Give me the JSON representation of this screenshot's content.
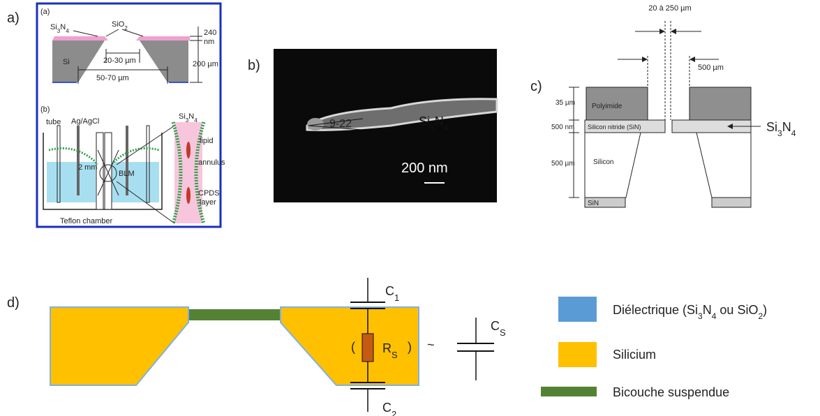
{
  "panel_labels": {
    "a": "a)",
    "b": "b)",
    "c": "c)",
    "d": "d)"
  },
  "a": {
    "top": {
      "label": "(a)",
      "si3n4": [
        "Si",
        "3",
        "N",
        "4"
      ],
      "sio2": [
        "SiO",
        "2"
      ],
      "thickness_value": "240",
      "thickness_unit": "nm",
      "depth": "200 µm",
      "si": "Si",
      "inner_width": "20-30 µm",
      "outer_width": "50-70 µm"
    },
    "bottom": {
      "label": "(b)",
      "tube": "tube",
      "electrode": "Ag/AgCl",
      "si3n4": [
        "Si",
        "3",
        "N",
        "4"
      ],
      "lipid": "lipid",
      "annulus": "annulus",
      "gap": "2 mm",
      "blm": "BLM",
      "cpds_1": "CPDS",
      "cpds_2": "layer",
      "chamber": "Teflon chamber"
    }
  },
  "b": {
    "angle": "9-22",
    "material": [
      "Si",
      "3",
      "N",
      "4"
    ],
    "scale": "200 nm"
  },
  "c": {
    "aperture": "20 à 250 µm",
    "hole": "500 µm",
    "polyimide_thickness": "35 µm",
    "nitride_thickness": "500 nm",
    "silicon_thickness": "500 µm",
    "polyimide": "Polyimide",
    "nitride": "Silicon nitride (SiN)",
    "silicon": "Silicon",
    "sin": "SiN",
    "callout": [
      "Si",
      "3",
      "N",
      "4"
    ]
  },
  "d": {
    "c1": [
      "C",
      "1"
    ],
    "c2": [
      "C",
      "2"
    ],
    "rs": [
      "R",
      "S"
    ],
    "cs": [
      "C",
      "S"
    ],
    "paren_open": "(",
    "paren_close": ")",
    "equiv": "~",
    "legend": {
      "dielectric": [
        "Diélectrique (Si",
        "3",
        "N",
        "4",
        " ou SiO",
        "2",
        ")"
      ],
      "silicon": "Silicium",
      "bilayer": "Bicouche suspendue"
    }
  }
}
